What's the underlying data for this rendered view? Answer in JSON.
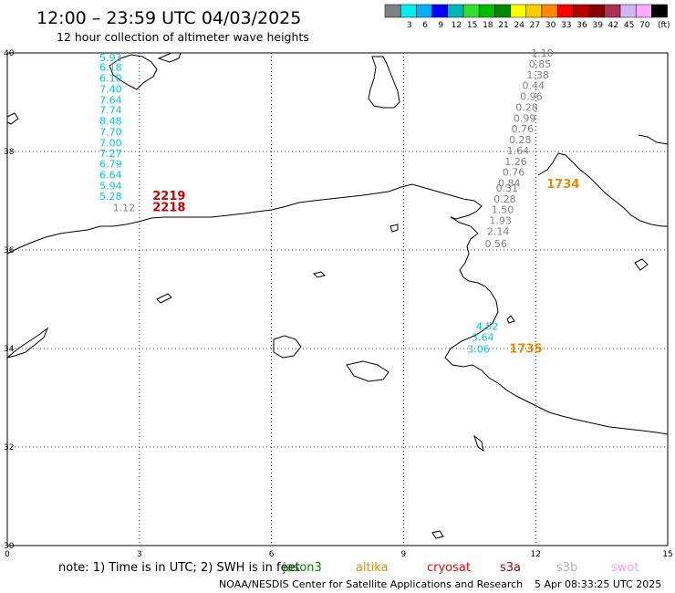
{
  "header": {
    "title": "12:00 – 23:59 UTC 04/03/2025",
    "subtitle": "12 hour collection of altimeter wave heights"
  },
  "legend": {
    "unit": "(ft)",
    "items": [
      {
        "label": "",
        "color": "#808080"
      },
      {
        "label": "3",
        "color": "#00eeee"
      },
      {
        "label": "6",
        "color": "#00b0f0"
      },
      {
        "label": "9",
        "color": "#0000ff"
      },
      {
        "label": "12",
        "color": "#00b8b8"
      },
      {
        "label": "15",
        "color": "#33dd33"
      },
      {
        "label": "18",
        "color": "#00bb00"
      },
      {
        "label": "21",
        "color": "#008800"
      },
      {
        "label": "24",
        "color": "#ffff00"
      },
      {
        "label": "27",
        "color": "#ffcc00"
      },
      {
        "label": "30",
        "color": "#ff8800"
      },
      {
        "label": "33",
        "color": "#ff0000"
      },
      {
        "label": "36",
        "color": "#bb0000"
      },
      {
        "label": "39",
        "color": "#880000"
      },
      {
        "label": "42",
        "color": "#aa3355"
      },
      {
        "label": "45",
        "color": "#d2b4f0"
      },
      {
        "label": "70",
        "color": "#ffaaff"
      },
      {
        "label": "",
        "color": "#000000"
      }
    ]
  },
  "axes": {
    "x_ticks": [
      "0",
      "3",
      "6",
      "9",
      "12",
      "15"
    ],
    "y_ticks": [
      "40",
      "38",
      "36",
      "34",
      "32",
      "30"
    ]
  },
  "tracks": [
    {
      "color": "#00c8e0",
      "points": [
        {
          "lon": 2.35,
          "lat": 39.91,
          "v": "5.93"
        },
        {
          "lon": 2.35,
          "lat": 39.71,
          "v": "6.18"
        },
        {
          "lon": 2.35,
          "lat": 39.49,
          "v": "6.10"
        },
        {
          "lon": 2.35,
          "lat": 39.27,
          "v": "7.40"
        },
        {
          "lon": 2.35,
          "lat": 39.05,
          "v": "7.64"
        },
        {
          "lon": 2.35,
          "lat": 38.84,
          "v": "7.74"
        },
        {
          "lon": 2.35,
          "lat": 38.62,
          "v": "8.48"
        },
        {
          "lon": 2.35,
          "lat": 38.4,
          "v": "7.70"
        },
        {
          "lon": 2.35,
          "lat": 38.18,
          "v": "7.00"
        },
        {
          "lon": 2.35,
          "lat": 37.96,
          "v": "7.27"
        },
        {
          "lon": 2.35,
          "lat": 37.75,
          "v": "6.79"
        },
        {
          "lon": 2.35,
          "lat": 37.53,
          "v": "6.64"
        },
        {
          "lon": 2.35,
          "lat": 37.31,
          "v": "5.94"
        },
        {
          "lon": 2.35,
          "lat": 37.09,
          "v": "5.28"
        }
      ]
    },
    {
      "color": "#808080",
      "points": [
        {
          "lon": 2.65,
          "lat": 36.86,
          "v": "1.12"
        }
      ]
    },
    {
      "color": "#808080",
      "points": [
        {
          "lon": 12.15,
          "lat": 40.0,
          "v": "1.10"
        },
        {
          "lon": 12.1,
          "lat": 39.78,
          "v": "0.85"
        },
        {
          "lon": 12.05,
          "lat": 39.56,
          "v": "1.38"
        },
        {
          "lon": 11.95,
          "lat": 39.34,
          "v": "0.44"
        },
        {
          "lon": 11.9,
          "lat": 39.12,
          "v": "0.96"
        },
        {
          "lon": 11.8,
          "lat": 38.9,
          "v": "0.28"
        },
        {
          "lon": 11.75,
          "lat": 38.68,
          "v": "0.99"
        },
        {
          "lon": 11.7,
          "lat": 38.46,
          "v": "0.76"
        },
        {
          "lon": 11.65,
          "lat": 38.24,
          "v": "0.28"
        },
        {
          "lon": 11.6,
          "lat": 38.02,
          "v": "1.64"
        },
        {
          "lon": 11.55,
          "lat": 37.8,
          "v": "1.26"
        },
        {
          "lon": 11.5,
          "lat": 37.58,
          "v": "0.76"
        },
        {
          "lon": 11.4,
          "lat": 37.36,
          "v": "0.84"
        },
        {
          "lon": 11.35,
          "lat": 37.26,
          "v": "0.31"
        },
        {
          "lon": 11.3,
          "lat": 37.04,
          "v": "0.28"
        },
        {
          "lon": 11.25,
          "lat": 36.82,
          "v": "1.50"
        },
        {
          "lon": 11.2,
          "lat": 36.6,
          "v": "1.93"
        },
        {
          "lon": 11.15,
          "lat": 36.38,
          "v": "2.14"
        },
        {
          "lon": 11.1,
          "lat": 36.13,
          "v": "0.56"
        }
      ]
    },
    {
      "color": "#00c8e0",
      "points": [
        {
          "lon": 10.9,
          "lat": 34.45,
          "v": "4.52"
        },
        {
          "lon": 10.8,
          "lat": 34.23,
          "v": "3.64"
        },
        {
          "lon": 10.7,
          "lat": 33.99,
          "v": "3.06"
        }
      ]
    }
  ],
  "passes": [
    {
      "lon": 3.3,
      "lat": 37.09,
      "text": "2219",
      "color": "#d00000"
    },
    {
      "lon": 3.3,
      "lat": 36.86,
      "text": "2218",
      "color": "#d00000"
    },
    {
      "lon": 12.25,
      "lat": 37.33,
      "text": "1734",
      "color": "#ee8800"
    },
    {
      "lon": 11.4,
      "lat": 33.99,
      "text": "1735",
      "color": "#ee8800"
    }
  ],
  "footer": {
    "note": "note:  1) Time is in UTC; 2) SWH is in feet",
    "satellites": [
      {
        "name": "jason3",
        "color": "#008000"
      },
      {
        "name": "altika",
        "color": "#ee8800"
      },
      {
        "name": "cryosat",
        "color": "#ff0000"
      },
      {
        "name": "s3a",
        "color": "#990000"
      },
      {
        "name": "s3b",
        "color": "#b8a8e0"
      },
      {
        "name": "swot",
        "color": "#ff99ee"
      }
    ],
    "credit": "NOAA/NESDIS Center for Satellite Applications and Research",
    "timestamp": "5 Apr 08:33:25 UTC 2025"
  }
}
